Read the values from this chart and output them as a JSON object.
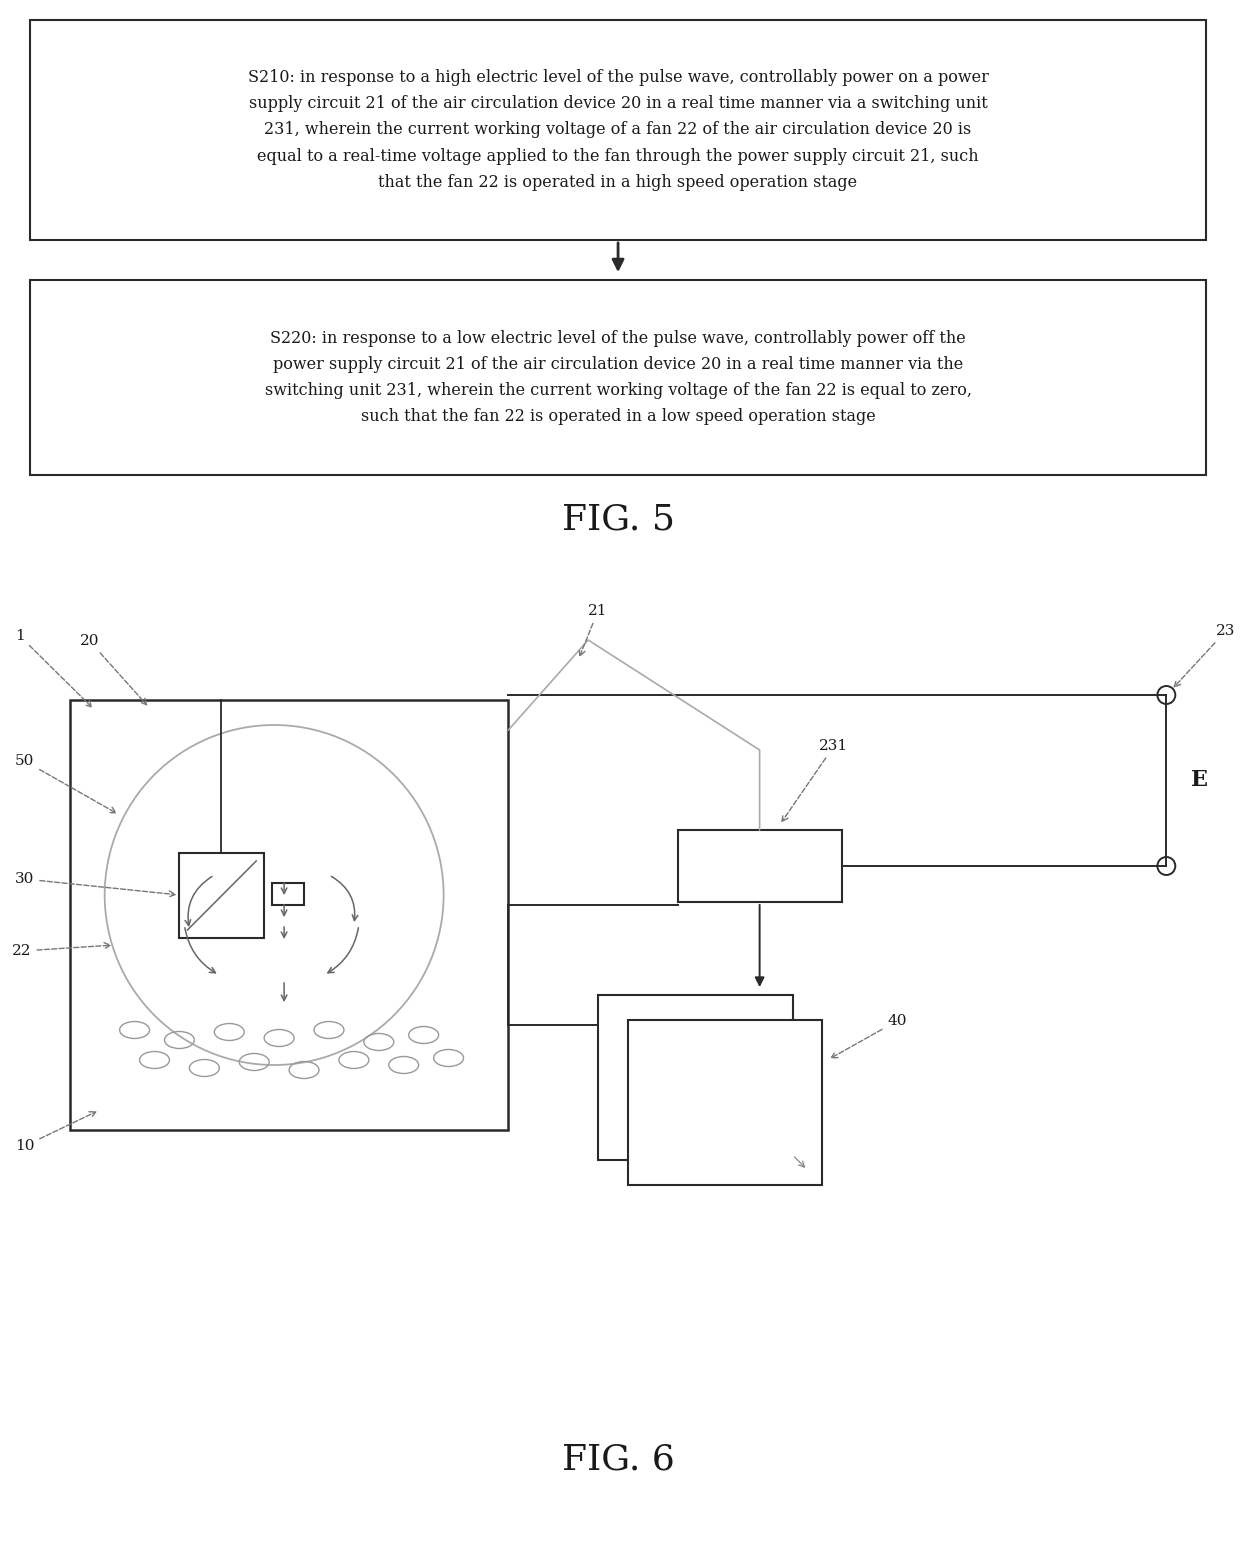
{
  "fig5_box1_text": "S210: in response to a high electric level of the pulse wave, controllably power on a power\nsupply circuit 21 of the air circulation device 20 in a real time manner via a switching unit\n231, wherein the current working voltage of a fan 22 of the air circulation device 20 is\nequal to a real-time voltage applied to the fan through the power supply circuit 21, such\nthat the fan 22 is operated in a high speed operation stage",
  "fig5_box2_text": "S220: in response to a low electric level of the pulse wave, controllably power off the\npower supply circuit 21 of the air circulation device 20 in a real time manner via the\nswitching unit 231, wherein the current working voltage of the fan 22 is equal to zero,\nsuch that the fan 22 is operated in a low speed operation stage",
  "fig5_label": "FIG. 5",
  "fig6_label": "FIG. 6",
  "bg_color": "#ffffff",
  "box_edge_color": "#2a2a2a",
  "text_color": "#1a1a1a",
  "font_size_text": 11.5,
  "font_size_label": 26,
  "font_size_annot": 11,
  "arrow_color": "#1a1a1a",
  "line_color": "#3a3a3a",
  "light_line": "#888888"
}
